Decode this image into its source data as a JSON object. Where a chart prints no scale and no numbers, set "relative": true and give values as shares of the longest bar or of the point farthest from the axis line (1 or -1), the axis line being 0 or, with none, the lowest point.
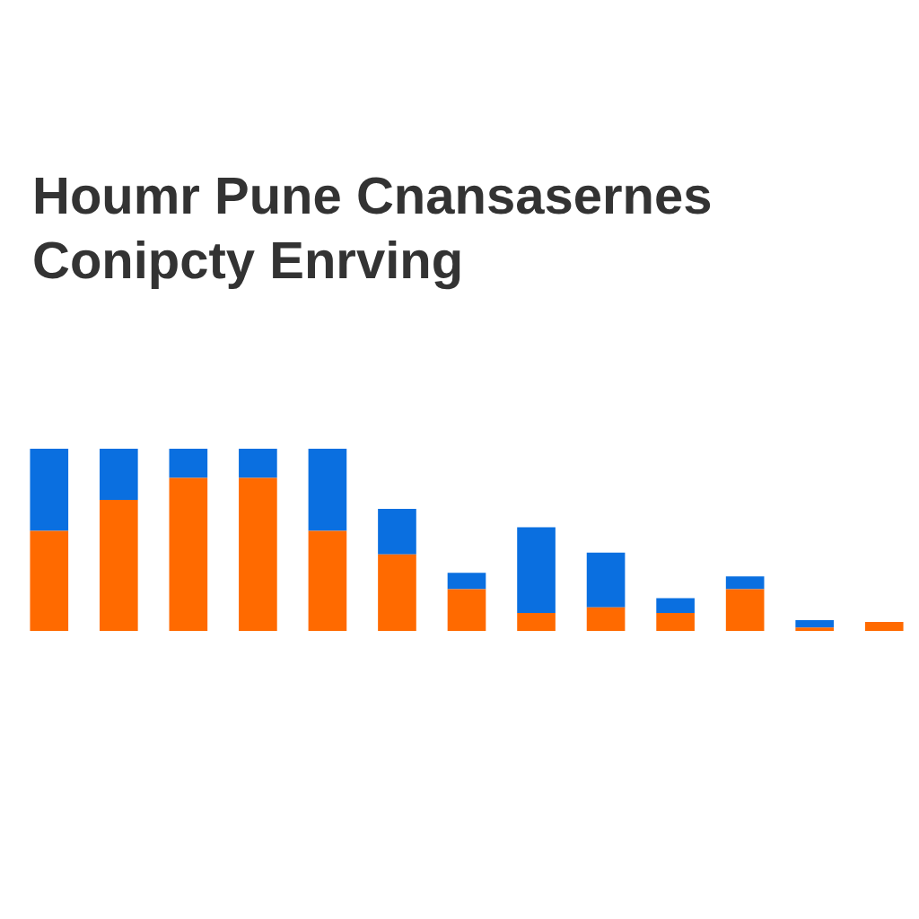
{
  "chart_data": {
    "type": "bar",
    "title": "Houmr Pune Cnansasernes Conipcty Enrving",
    "stacked": true,
    "relative": true,
    "grid": false,
    "legend": false,
    "categories": [
      null,
      null,
      null,
      null,
      null,
      null,
      null,
      null,
      null,
      null,
      null,
      null,
      null
    ],
    "series": [
      {
        "color": "#ff6a00",
        "values": [
          0.55,
          0.72,
          0.84,
          0.84,
          0.55,
          0.42,
          0.23,
          0.1,
          0.13,
          0.1,
          0.23,
          0.02,
          0.05
        ]
      },
      {
        "color": "#0a6fe0",
        "values": [
          0.45,
          0.28,
          0.16,
          0.16,
          0.45,
          0.25,
          0.09,
          0.47,
          0.3,
          0.08,
          0.07,
          0.04,
          0
        ]
      }
    ]
  }
}
